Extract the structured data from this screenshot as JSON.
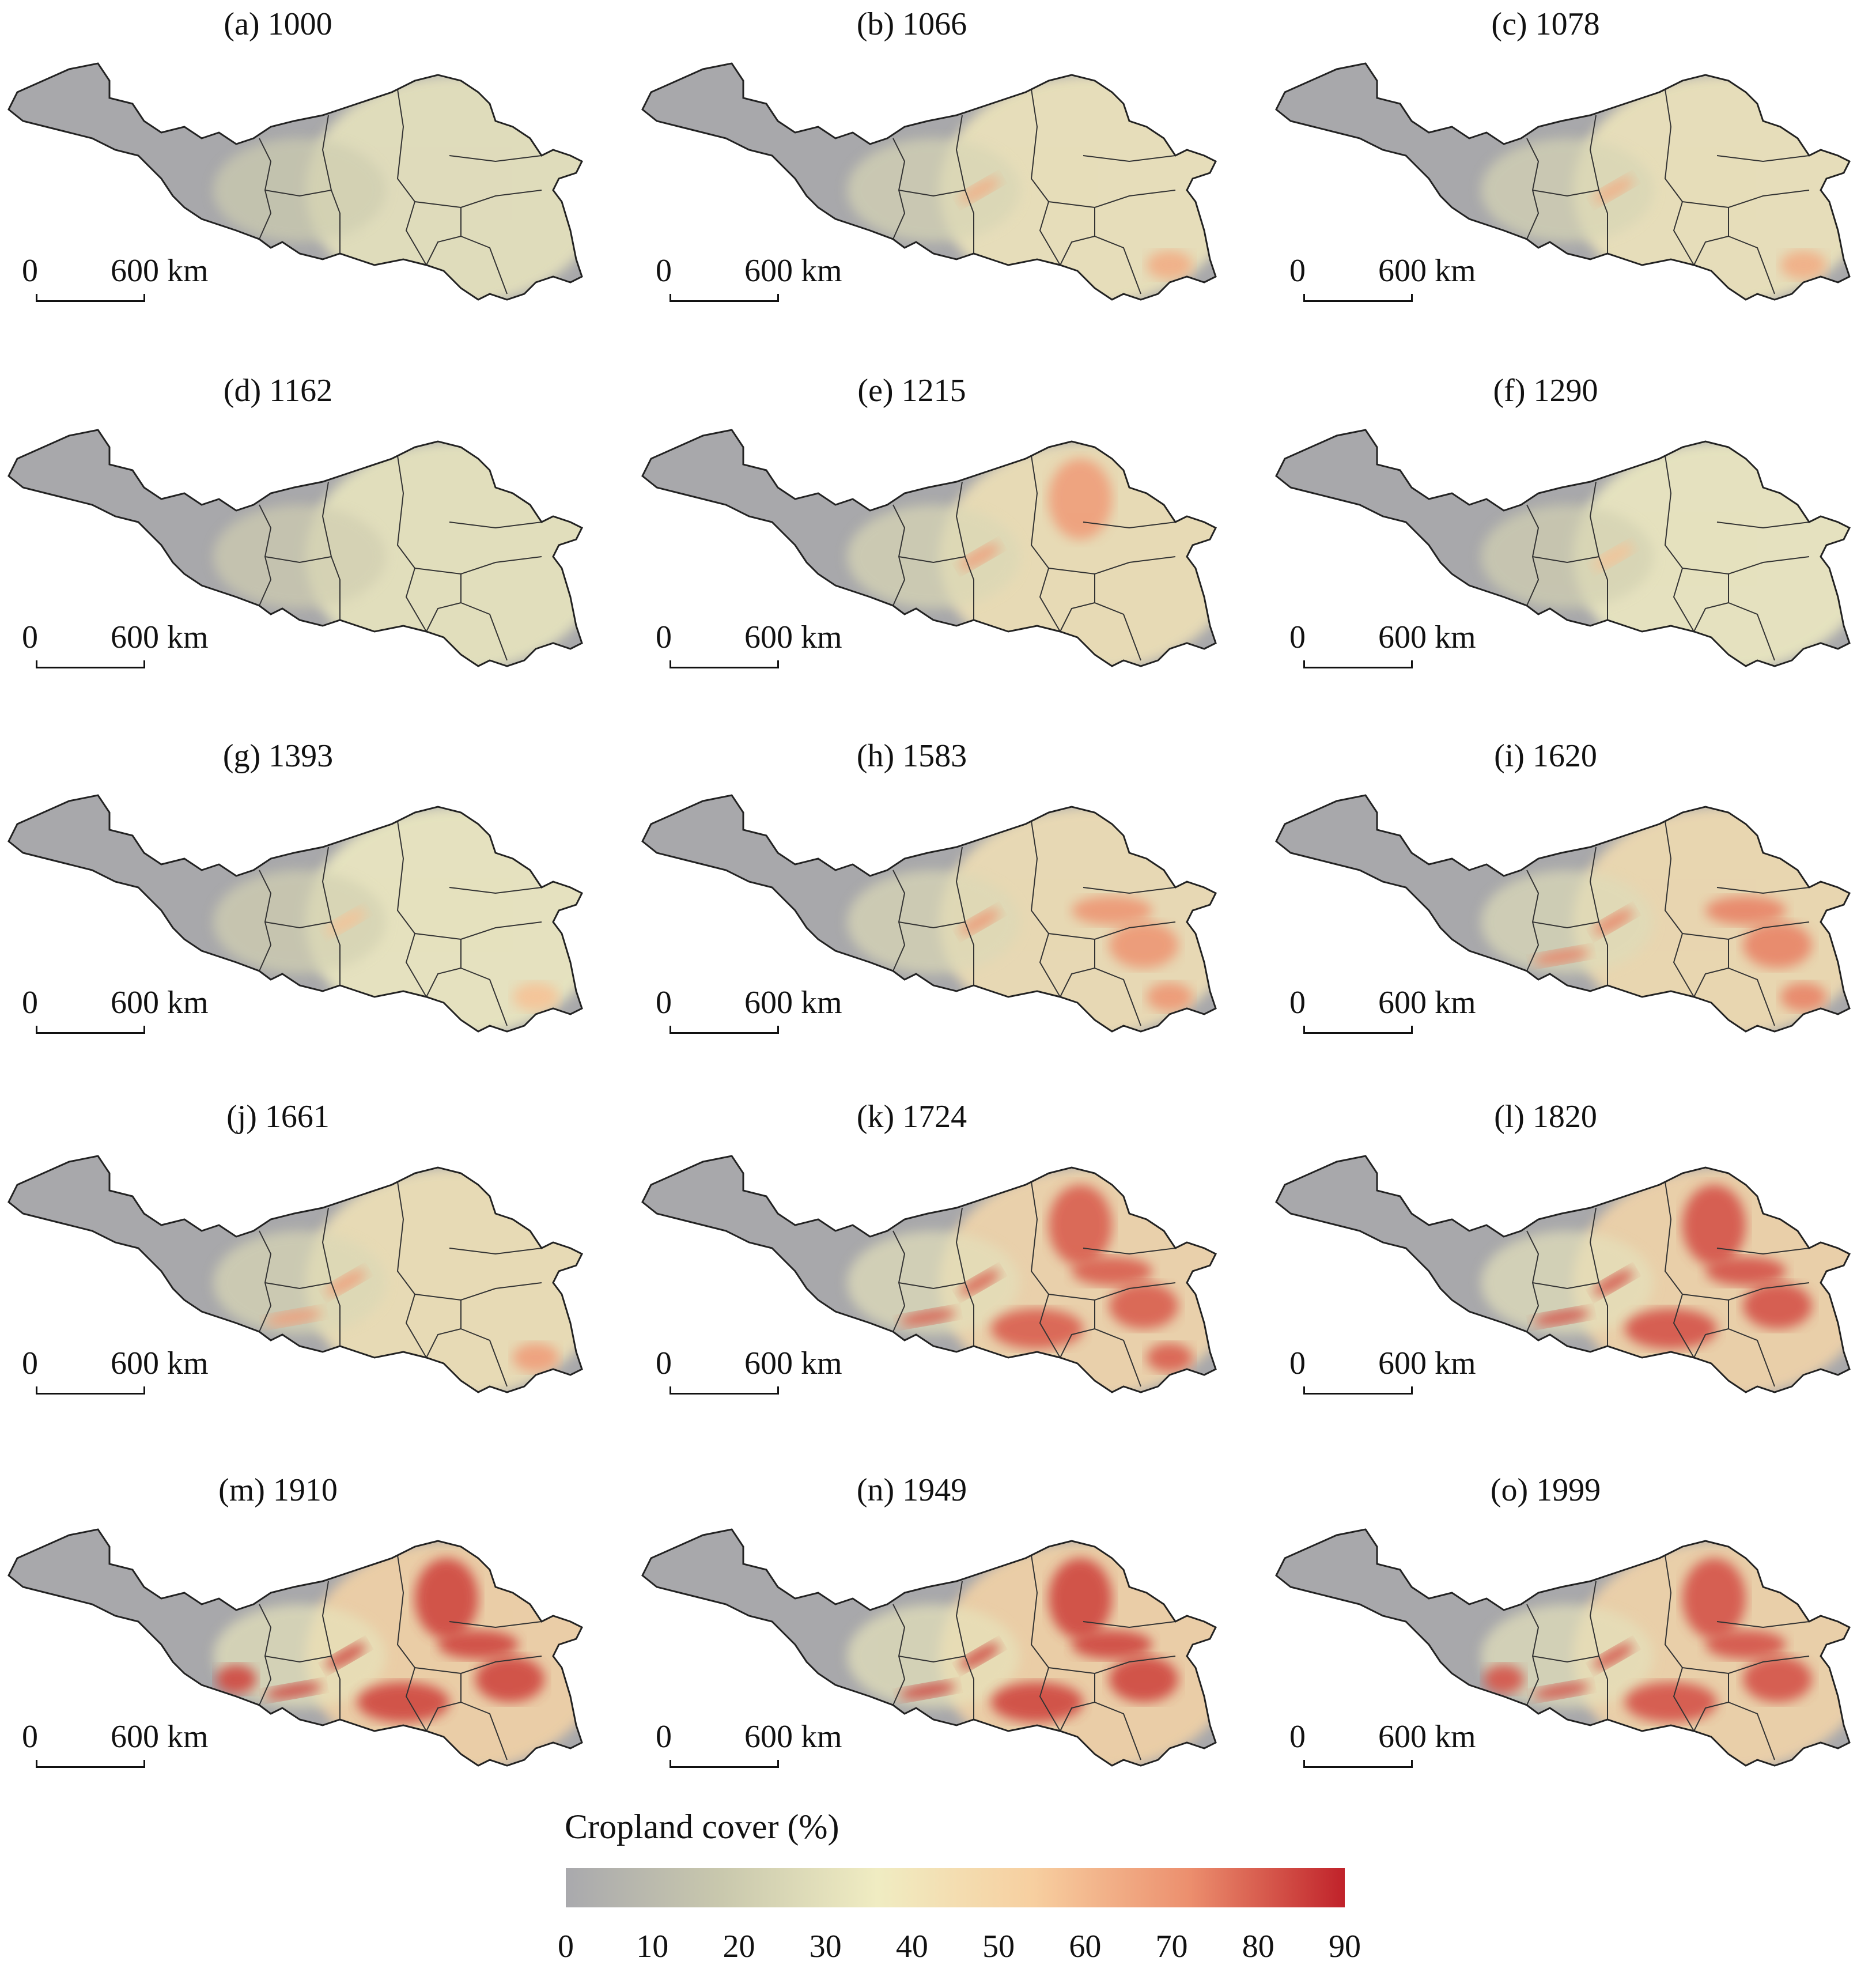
{
  "legend": {
    "title": "Cropland cover (%)",
    "ticks": [
      "0",
      "10",
      "20",
      "30",
      "40",
      "50",
      "60",
      "70",
      "80",
      "90"
    ],
    "min": 0,
    "max": 90,
    "color_stops": [
      "#a9a9ad",
      "#c9c8ad",
      "#f0ecc2",
      "#f7cfa0",
      "#ec8f6e",
      "#c0222a"
    ]
  },
  "scale_bar": {
    "left_label": "0",
    "right_label": "600 km"
  },
  "panels": [
    {
      "label": "(a) 1000",
      "year": 1000,
      "intensity": 0.05,
      "hotspots": []
    },
    {
      "label": "(b) 1066",
      "year": 1066,
      "intensity": 0.35,
      "hotspots": [
        "fen-valley",
        "south-east"
      ]
    },
    {
      "label": "(c) 1078",
      "year": 1078,
      "intensity": 0.35,
      "hotspots": [
        "fen-valley",
        "south-east"
      ]
    },
    {
      "label": "(d) 1162",
      "year": 1162,
      "intensity": 0.1,
      "hotspots": []
    },
    {
      "label": "(e) 1215",
      "year": 1215,
      "intensity": 0.45,
      "hotspots": [
        "fen-valley",
        "north-plain"
      ]
    },
    {
      "label": "(f) 1290",
      "year": 1290,
      "intensity": 0.2,
      "hotspots": [
        "fen-valley"
      ]
    },
    {
      "label": "(g) 1393",
      "year": 1393,
      "intensity": 0.2,
      "hotspots": [
        "fen-valley",
        "south-east"
      ]
    },
    {
      "label": "(h) 1583",
      "year": 1583,
      "intensity": 0.5,
      "hotspots": [
        "fen-valley",
        "south-east",
        "east-coast"
      ]
    },
    {
      "label": "(i) 1620",
      "year": 1620,
      "intensity": 0.6,
      "hotspots": [
        "fen-valley",
        "wei-valley",
        "south-east",
        "east-coast"
      ]
    },
    {
      "label": "(j) 1661",
      "year": 1661,
      "intensity": 0.45,
      "hotspots": [
        "fen-valley",
        "wei-valley",
        "south-east"
      ]
    },
    {
      "label": "(k) 1724",
      "year": 1724,
      "intensity": 0.75,
      "hotspots": [
        "fen-valley",
        "wei-valley",
        "north-plain",
        "south-east",
        "east-coast",
        "henan"
      ]
    },
    {
      "label": "(l) 1820",
      "year": 1820,
      "intensity": 0.8,
      "hotspots": [
        "fen-valley",
        "wei-valley",
        "north-plain",
        "henan",
        "east-coast"
      ]
    },
    {
      "label": "(m) 1910",
      "year": 1910,
      "intensity": 0.85,
      "hotspots": [
        "fen-valley",
        "wei-valley",
        "north-plain",
        "henan",
        "east-coast",
        "west-loess"
      ]
    },
    {
      "label": "(n) 1949",
      "year": 1949,
      "intensity": 0.85,
      "hotspots": [
        "fen-valley",
        "wei-valley",
        "north-plain",
        "henan",
        "east-coast"
      ]
    },
    {
      "label": "(o) 1999",
      "year": 1999,
      "intensity": 0.8,
      "hotspots": [
        "fen-valley",
        "wei-valley",
        "north-plain",
        "henan",
        "east-coast",
        "west-loess"
      ]
    }
  ]
}
